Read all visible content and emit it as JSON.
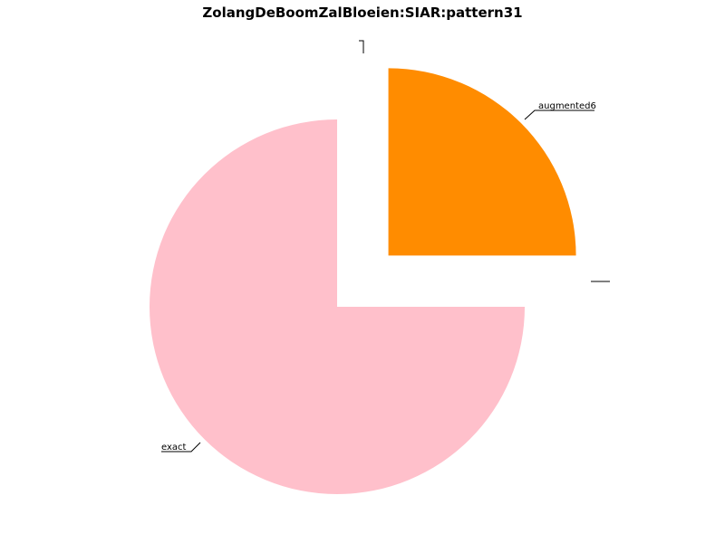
{
  "chart_data": {
    "type": "pie",
    "title": "ZolangDeBoomZalBloeien:SIAR:pattern31",
    "slices": [
      {
        "label": "exact",
        "value": 75,
        "color": "#ffc0cb",
        "exploded": false
      },
      {
        "label": "augmented6",
        "value": 25,
        "color": "#ff8c00",
        "exploded": true
      }
    ],
    "start": "12 o'clock",
    "direction": "clockwise",
    "legend": "none"
  }
}
